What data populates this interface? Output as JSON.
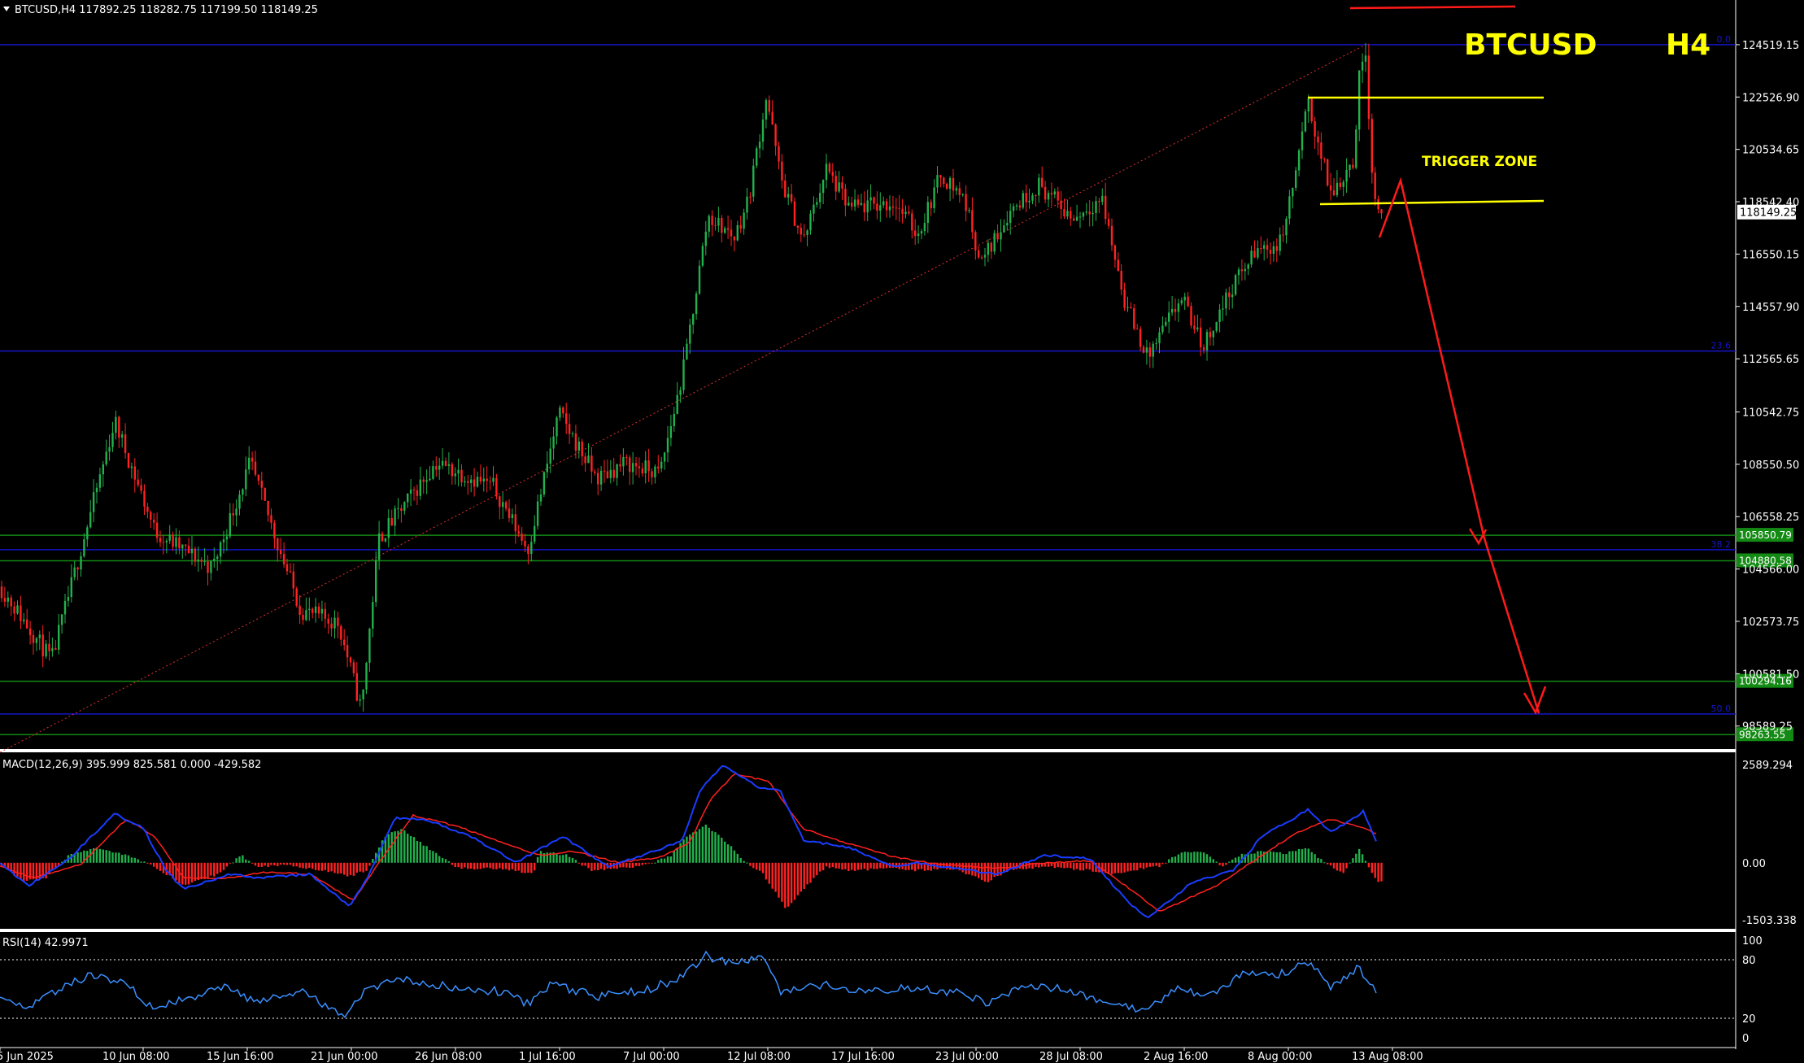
{
  "header": {
    "symbol_line": "BTCUSD,H4  117892.25 118282.75 117199.50 118149.25",
    "title_symbol": "BTCUSD",
    "title_tf": "H4"
  },
  "annotations": {
    "trigger_zone": "TRIGGER ZONE"
  },
  "colors": {
    "background": "#000000",
    "bull": "#22b14c",
    "bear": "#ff2222",
    "title": "#ffff00",
    "fib_line": "#1515c8",
    "sr_line": "#138a13",
    "trend": "#ff3030",
    "macd_line": "#1a3cff",
    "signal_line": "#ff2020",
    "rsi_line": "#3a8fff"
  },
  "chart_data": [
    {
      "type": "candlestick",
      "title": "BTCUSD,H4",
      "ohlc_last": {
        "open": 117892.25,
        "high": 118282.75,
        "low": 117199.5,
        "close": 118149.25
      },
      "price_axis_ticks": [
        "124519.15",
        "122526.90",
        "120534.65",
        "118542.40",
        "116550.15",
        "114557.90",
        "112565.65",
        "110542.75",
        "108550.50",
        "106558.25",
        "104566.00",
        "102573.75",
        "100581.50",
        "98589.25"
      ],
      "current_price_label": "118149.25",
      "ylim": [
        97900,
        125600
      ],
      "time_axis_labels": [
        "5 Jun 2025",
        "10 Jun 08:00",
        "15 Jun 16:00",
        "21 Jun 00:00",
        "26 Jun 08:00",
        "1 Jul 16:00",
        "7 Jul 00:00",
        "12 Jul 08:00",
        "17 Jul 16:00",
        "23 Jul 00:00",
        "28 Jul 08:00",
        "2 Aug 16:00",
        "8 Aug 00:00",
        "13 Aug 08:00"
      ],
      "levels": [
        {
          "kind": "fib",
          "price": 124519.15,
          "label": "0.0"
        },
        {
          "kind": "fib",
          "price": 112860,
          "label": "23.6"
        },
        {
          "kind": "fib",
          "price": 105300,
          "label": "38.2"
        },
        {
          "kind": "fib",
          "price": 99050,
          "label": "50.0"
        },
        {
          "kind": "support",
          "price": 105850.79,
          "label": "105850.79"
        },
        {
          "kind": "support",
          "price": 104880.58,
          "label": "104880.58"
        },
        {
          "kind": "support",
          "price": 100294.16,
          "label": "100294.16"
        },
        {
          "kind": "support",
          "price": 98263.55,
          "label": "98263.55"
        }
      ],
      "path_points": [
        [
          0,
          103900
        ],
        [
          45,
          101100
        ],
        [
          100,
          110200
        ],
        [
          135,
          106000
        ],
        [
          185,
          104600
        ],
        [
          218,
          108600
        ],
        [
          262,
          103000
        ],
        [
          295,
          102500
        ],
        [
          315,
          99200
        ],
        [
          330,
          105700
        ],
        [
          380,
          108600
        ],
        [
          430,
          107700
        ],
        [
          460,
          105300
        ],
        [
          487,
          110500
        ],
        [
          520,
          108000
        ],
        [
          545,
          108600
        ],
        [
          575,
          108200
        ],
        [
          595,
          112000
        ],
        [
          617,
          118000
        ],
        [
          640,
          117200
        ],
        [
          652,
          118600
        ],
        [
          668,
          122600
        ],
        [
          680,
          119500
        ],
        [
          700,
          117000
        ],
        [
          720,
          119800
        ],
        [
          740,
          118300
        ],
        [
          780,
          118500
        ],
        [
          800,
          117300
        ],
        [
          820,
          119600
        ],
        [
          840,
          118700
        ],
        [
          855,
          116200
        ],
        [
          880,
          118200
        ],
        [
          905,
          119200
        ],
        [
          935,
          117900
        ],
        [
          960,
          118700
        ],
        [
          980,
          114800
        ],
        [
          1000,
          112600
        ],
        [
          1030,
          114900
        ],
        [
          1048,
          113000
        ],
        [
          1075,
          115400
        ],
        [
          1095,
          116700
        ],
        [
          1115,
          116900
        ],
        [
          1125,
          118700
        ],
        [
          1140,
          122300
        ],
        [
          1160,
          118800
        ],
        [
          1180,
          120200
        ],
        [
          1185,
          123500
        ],
        [
          1190,
          124300
        ],
        [
          1197,
          118800
        ],
        [
          1205,
          117900
        ]
      ]
    },
    {
      "type": "macd",
      "label": "MACD(12,26,9) 395.999 825.581 0.000 -429.582",
      "axis_labels": [
        "2589.294",
        "0.00",
        "-1503.338"
      ],
      "ylim": [
        -1700,
        2700
      ],
      "macd_points": [
        [
          0,
          -20
        ],
        [
          25,
          -600
        ],
        [
          60,
          100
        ],
        [
          100,
          1300
        ],
        [
          125,
          900
        ],
        [
          145,
          -200
        ],
        [
          160,
          -700
        ],
        [
          200,
          -300
        ],
        [
          225,
          -400
        ],
        [
          270,
          -300
        ],
        [
          305,
          -1150
        ],
        [
          320,
          -400
        ],
        [
          345,
          1200
        ],
        [
          375,
          1100
        ],
        [
          410,
          700
        ],
        [
          450,
          0
        ],
        [
          490,
          700
        ],
        [
          530,
          -100
        ],
        [
          570,
          300
        ],
        [
          595,
          600
        ],
        [
          610,
          1900
        ],
        [
          630,
          2600
        ],
        [
          660,
          2000
        ],
        [
          680,
          1900
        ],
        [
          700,
          600
        ],
        [
          740,
          400
        ],
        [
          780,
          -100
        ],
        [
          800,
          0
        ],
        [
          830,
          -150
        ],
        [
          870,
          -300
        ],
        [
          910,
          200
        ],
        [
          950,
          100
        ],
        [
          985,
          -1100
        ],
        [
          1000,
          -1450
        ],
        [
          1040,
          -500
        ],
        [
          1075,
          -200
        ],
        [
          1100,
          700
        ],
        [
          1140,
          1400
        ],
        [
          1160,
          800
        ],
        [
          1188,
          1350
        ],
        [
          1200,
          500
        ]
      ],
      "signal_points": [
        [
          0,
          -100
        ],
        [
          30,
          -400
        ],
        [
          70,
          -50
        ],
        [
          110,
          1150
        ],
        [
          135,
          700
        ],
        [
          160,
          -400
        ],
        [
          200,
          -400
        ],
        [
          230,
          -250
        ],
        [
          270,
          -300
        ],
        [
          308,
          -1000
        ],
        [
          330,
          0
        ],
        [
          360,
          1250
        ],
        [
          400,
          950
        ],
        [
          440,
          500
        ],
        [
          470,
          200
        ],
        [
          500,
          300
        ],
        [
          540,
          0
        ],
        [
          575,
          150
        ],
        [
          600,
          500
        ],
        [
          620,
          1700
        ],
        [
          640,
          2350
        ],
        [
          670,
          2150
        ],
        [
          700,
          900
        ],
        [
          740,
          500
        ],
        [
          780,
          150
        ],
        [
          820,
          -50
        ],
        [
          870,
          -150
        ],
        [
          910,
          0
        ],
        [
          950,
          50
        ],
        [
          990,
          -800
        ],
        [
          1010,
          -1300
        ],
        [
          1060,
          -600
        ],
        [
          1090,
          0
        ],
        [
          1130,
          800
        ],
        [
          1160,
          1150
        ],
        [
          1190,
          900
        ],
        [
          1200,
          750
        ]
      ],
      "histogram_points": [
        [
          0,
          -30
        ],
        [
          20,
          -500
        ],
        [
          40,
          -400
        ],
        [
          60,
          200
        ],
        [
          85,
          400
        ],
        [
          110,
          200
        ],
        [
          135,
          -100
        ],
        [
          160,
          -600
        ],
        [
          190,
          -300
        ],
        [
          210,
          200
        ],
        [
          225,
          -100
        ],
        [
          250,
          -50
        ],
        [
          280,
          -200
        ],
        [
          305,
          -350
        ],
        [
          320,
          -200
        ],
        [
          335,
          700
        ],
        [
          350,
          900
        ],
        [
          370,
          450
        ],
        [
          400,
          -150
        ],
        [
          440,
          -150
        ],
        [
          465,
          -300
        ],
        [
          470,
          300
        ],
        [
          495,
          200
        ],
        [
          515,
          -200
        ],
        [
          540,
          -150
        ],
        [
          565,
          -50
        ],
        [
          585,
          200
        ],
        [
          595,
          600
        ],
        [
          615,
          1000
        ],
        [
          635,
          500
        ],
        [
          650,
          0
        ],
        [
          665,
          -300
        ],
        [
          685,
          -1200
        ],
        [
          700,
          -700
        ],
        [
          720,
          -100
        ],
        [
          740,
          -200
        ],
        [
          775,
          -150
        ],
        [
          800,
          -200
        ],
        [
          830,
          -150
        ],
        [
          860,
          -500
        ],
        [
          880,
          -200
        ],
        [
          910,
          -100
        ],
        [
          950,
          -200
        ],
        [
          970,
          -300
        ],
        [
          985,
          -200
        ],
        [
          1010,
          -100
        ],
        [
          1030,
          300
        ],
        [
          1050,
          250
        ],
        [
          1065,
          -100
        ],
        [
          1080,
          200
        ],
        [
          1100,
          300
        ],
        [
          1120,
          250
        ],
        [
          1140,
          400
        ],
        [
          1150,
          100
        ],
        [
          1170,
          -300
        ],
        [
          1185,
          400
        ],
        [
          1195,
          -250
        ],
        [
          1200,
          -500
        ]
      ]
    },
    {
      "type": "rsi",
      "label": "RSI(14) 42.9971",
      "axis_labels": [
        "100",
        "80",
        "20",
        "0"
      ],
      "ylim": [
        0,
        100
      ],
      "levels": [
        80,
        20
      ],
      "rsi_points": [
        [
          0,
          45
        ],
        [
          25,
          30
        ],
        [
          50,
          48
        ],
        [
          80,
          66
        ],
        [
          110,
          55
        ],
        [
          135,
          28
        ],
        [
          160,
          40
        ],
        [
          200,
          52
        ],
        [
          225,
          35
        ],
        [
          260,
          48
        ],
        [
          300,
          24
        ],
        [
          320,
          52
        ],
        [
          355,
          60
        ],
        [
          400,
          51
        ],
        [
          440,
          47
        ],
        [
          460,
          34
        ],
        [
          480,
          56
        ],
        [
          520,
          42
        ],
        [
          560,
          48
        ],
        [
          590,
          60
        ],
        [
          615,
          84
        ],
        [
          640,
          75
        ],
        [
          665,
          84
        ],
        [
          680,
          46
        ],
        [
          720,
          54
        ],
        [
          760,
          48
        ],
        [
          800,
          52
        ],
        [
          840,
          45
        ],
        [
          860,
          36
        ],
        [
          900,
          54
        ],
        [
          935,
          48
        ],
        [
          970,
          32
        ],
        [
          995,
          29
        ],
        [
          1030,
          52
        ],
        [
          1050,
          40
        ],
        [
          1085,
          68
        ],
        [
          1110,
          62
        ],
        [
          1140,
          78
        ],
        [
          1160,
          52
        ],
        [
          1185,
          72
        ],
        [
          1200,
          43
        ]
      ]
    }
  ]
}
